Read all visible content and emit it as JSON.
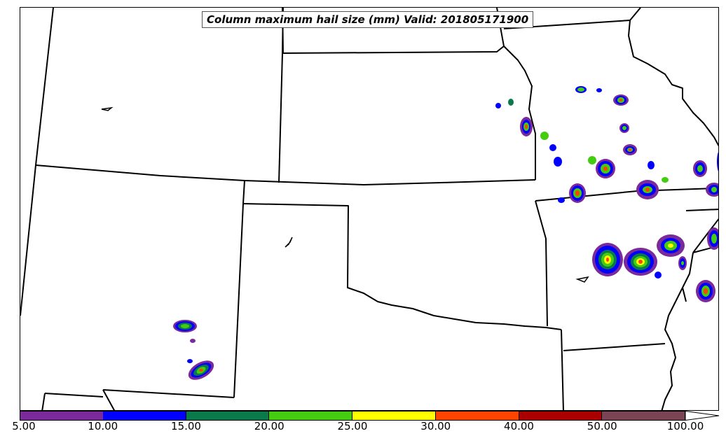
{
  "title": "Column maximum hail size (mm) Valid: 201805171900",
  "colorbar": {
    "ticks": [
      "5.00",
      "10.00",
      "15.00",
      "20.00",
      "25.00",
      "30.00",
      "40.00",
      "50.00",
      "100.00"
    ],
    "colors": [
      "#7a2a9a",
      "#0000ff",
      "#0a7a4a",
      "#44cc11",
      "#ffff00",
      "#ff4400",
      "#aa0000",
      "#7a4455"
    ],
    "extend": "max"
  },
  "palette": {
    "border": "#000000",
    "background": "#ffffff"
  }
}
